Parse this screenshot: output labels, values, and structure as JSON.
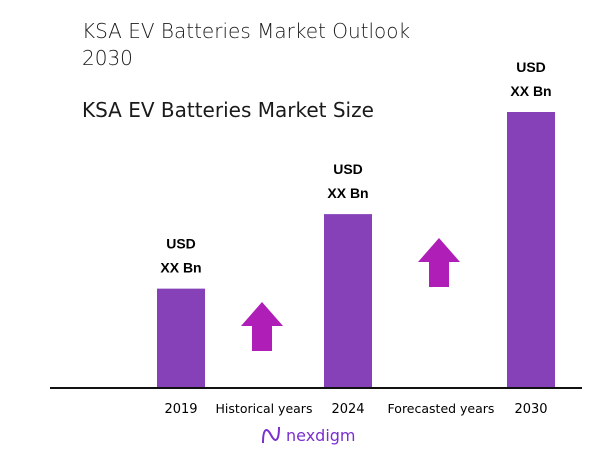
{
  "title": "KSA EV Batteries Market Outlook 2030",
  "subtitle": "KSA EV Batteries Market Size",
  "colors": {
    "bar": "#8640b8",
    "arrow": "#b01eb8",
    "axis": "#111111",
    "logo": "#7b2fd0"
  },
  "logo": {
    "text": "nexdigm"
  },
  "chart_data": {
    "type": "bar",
    "categories": [
      "2019",
      "2024",
      "2030"
    ],
    "values_relative": [
      0.36,
      0.63,
      1.0
    ],
    "data_labels": [
      [
        "USD",
        "XX Bn"
      ],
      [
        "USD",
        "XX Bn"
      ],
      [
        "USD",
        "XX Bn"
      ]
    ],
    "period_labels": [
      "Historical years",
      "Forecasted years"
    ],
    "annotations": [
      "up-arrow",
      "up-arrow"
    ],
    "grid": false,
    "legend": "none"
  }
}
